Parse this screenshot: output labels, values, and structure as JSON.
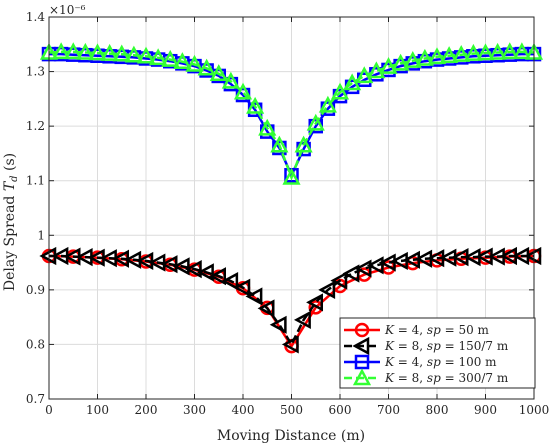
{
  "chart_data": {
    "type": "line",
    "xlabel": "Moving Distance (m)",
    "ylabel": "Delay Spread T_d (s)",
    "ylabel_parts": {
      "text": "Delay Spread ",
      "sym": "T",
      "sub": "d",
      "unit": " (s)"
    },
    "exponent_label": "×10⁻⁶",
    "xlim": [
      0,
      1000
    ],
    "ylim": [
      0.7,
      1.4
    ],
    "y_scale_factor": 1e-06,
    "grid": true,
    "legend_position": "lower-right",
    "x_ticks": [
      "0",
      "100",
      "200",
      "300",
      "400",
      "500",
      "600",
      "700",
      "800",
      "900",
      "1000"
    ],
    "y_ticks": [
      "0.7",
      "0.8",
      "0.9",
      "1",
      "1.1",
      "1.2",
      "1.3",
      "1.4"
    ],
    "x": [
      0,
      25,
      50,
      75,
      100,
      125,
      150,
      175,
      200,
      225,
      250,
      275,
      300,
      325,
      350,
      375,
      400,
      425,
      450,
      475,
      500,
      525,
      550,
      575,
      600,
      625,
      650,
      675,
      700,
      725,
      750,
      775,
      800,
      825,
      850,
      875,
      900,
      925,
      950,
      975,
      1000
    ],
    "series": [
      {
        "name": "K = 4, sp = 50 m",
        "legend": {
          "a": "K",
          "b": " = 4, ",
          "c": "sp",
          "d": " = 50 m"
        },
        "color": "#ff0000",
        "marker": "circle",
        "dash": "solid",
        "x": [
          0,
          50,
          100,
          150,
          200,
          250,
          300,
          350,
          400,
          450,
          500,
          550,
          600,
          650,
          700,
          750,
          800,
          850,
          900,
          950,
          1000
        ],
        "y": [
          0.962,
          0.961,
          0.959,
          0.956,
          0.952,
          0.946,
          0.937,
          0.924,
          0.903,
          0.867,
          0.797,
          0.868,
          0.907,
          0.928,
          0.941,
          0.949,
          0.954,
          0.957,
          0.959,
          0.961,
          0.962
        ]
      },
      {
        "name": "K = 8, sp = 150/7 m",
        "legend": {
          "a": "K",
          "b": " = 8, ",
          "c": "sp",
          "d": " = 150/7 m"
        },
        "color": "#000000",
        "marker": "triangle-left",
        "dash": "dashed",
        "x": [
          0,
          25,
          50,
          75,
          100,
          125,
          150,
          175,
          200,
          225,
          250,
          275,
          300,
          325,
          350,
          375,
          400,
          425,
          450,
          475,
          500,
          525,
          550,
          575,
          600,
          625,
          650,
          675,
          700,
          725,
          750,
          775,
          800,
          825,
          850,
          875,
          900,
          925,
          950,
          975,
          1000
        ],
        "y": [
          0.962,
          0.962,
          0.961,
          0.96,
          0.959,
          0.958,
          0.957,
          0.955,
          0.953,
          0.95,
          0.947,
          0.943,
          0.938,
          0.932,
          0.925,
          0.916,
          0.904,
          0.888,
          0.866,
          0.836,
          0.8,
          0.845,
          0.877,
          0.9,
          0.917,
          0.93,
          0.939,
          0.945,
          0.95,
          0.953,
          0.955,
          0.957,
          0.958,
          0.959,
          0.96,
          0.96,
          0.961,
          0.961,
          0.962,
          0.962,
          0.962
        ]
      },
      {
        "name": "K = 4, sp = 100 m",
        "legend": {
          "a": "K",
          "b": " = 4, ",
          "c": "sp",
          "d": " = 100 m"
        },
        "color": "#0000ff",
        "marker": "square",
        "dash": "solid",
        "x": [
          0,
          25,
          50,
          75,
          100,
          125,
          150,
          175,
          200,
          225,
          250,
          275,
          300,
          325,
          350,
          375,
          400,
          425,
          450,
          475,
          500,
          525,
          550,
          575,
          600,
          625,
          650,
          675,
          700,
          725,
          750,
          775,
          800,
          825,
          850,
          875,
          900,
          925,
          950,
          975,
          1000
        ],
        "y": [
          1.332,
          1.332,
          1.331,
          1.33,
          1.329,
          1.328,
          1.327,
          1.326,
          1.324,
          1.322,
          1.319,
          1.315,
          1.31,
          1.302,
          1.292,
          1.277,
          1.257,
          1.23,
          1.19,
          1.16,
          1.11,
          1.158,
          1.2,
          1.232,
          1.255,
          1.272,
          1.285,
          1.295,
          1.303,
          1.31,
          1.315,
          1.319,
          1.322,
          1.324,
          1.326,
          1.328,
          1.329,
          1.33,
          1.331,
          1.332,
          1.332
        ]
      },
      {
        "name": "K = 8, sp = 300/7 m",
        "legend": {
          "a": "K",
          "b": " = 8, ",
          "c": "sp",
          "d": " = 300/7 m"
        },
        "color": "#33ff33",
        "marker": "triangle-up",
        "dash": "dashed",
        "x": [
          0,
          25,
          50,
          75,
          100,
          125,
          150,
          175,
          200,
          225,
          250,
          275,
          300,
          325,
          350,
          375,
          400,
          425,
          450,
          475,
          500,
          525,
          550,
          575,
          600,
          625,
          650,
          675,
          700,
          725,
          750,
          775,
          800,
          825,
          850,
          875,
          900,
          925,
          950,
          975,
          1000
        ],
        "y": [
          1.335,
          1.336,
          1.336,
          1.335,
          1.334,
          1.333,
          1.332,
          1.33,
          1.328,
          1.325,
          1.322,
          1.318,
          1.313,
          1.306,
          1.296,
          1.282,
          1.262,
          1.236,
          1.196,
          1.165,
          1.106,
          1.165,
          1.205,
          1.238,
          1.262,
          1.279,
          1.292,
          1.301,
          1.309,
          1.315,
          1.32,
          1.324,
          1.327,
          1.329,
          1.331,
          1.333,
          1.334,
          1.335,
          1.336,
          1.336,
          1.335
        ]
      }
    ]
  }
}
